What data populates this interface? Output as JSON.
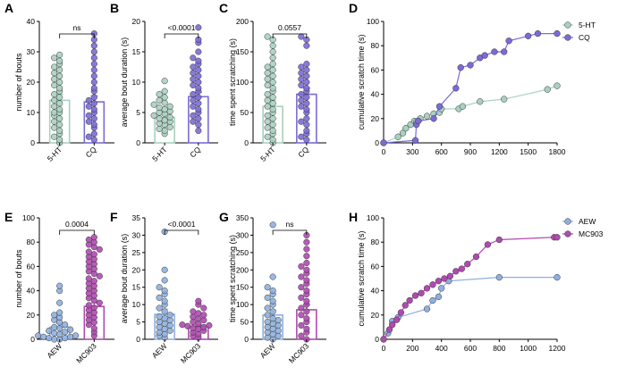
{
  "colors": {
    "5-HT": "#a8d0c0",
    "CQ": "#7b6bd6",
    "AEW": "#8fb0de",
    "MC903": "#b04ab0"
  },
  "chart_data": [
    {
      "panel": "A",
      "type": "bar",
      "categories": [
        "5-HT",
        "CQ"
      ],
      "values": [
        14,
        13.5
      ],
      "sem": [
        2,
        2
      ],
      "points": [
        [
          0,
          1,
          2,
          3,
          4,
          5,
          6,
          7,
          8,
          9,
          10,
          10,
          11,
          12,
          13,
          14,
          15,
          16,
          17,
          18,
          19,
          20,
          21,
          22,
          23,
          24,
          25,
          26,
          27,
          28,
          29
        ],
        [
          1,
          2,
          3,
          5,
          6,
          7,
          8,
          9,
          10,
          11,
          12,
          13,
          14,
          15,
          17,
          18,
          20,
          22,
          24,
          26,
          28,
          30,
          32,
          34,
          36
        ]
      ],
      "ylabel": "number of bouts",
      "ylim": [
        0,
        40
      ],
      "yticks": [
        0,
        10,
        20,
        30,
        40
      ],
      "significance": "ns"
    },
    {
      "panel": "B",
      "type": "bar",
      "categories": [
        "5-HT",
        "CQ"
      ],
      "values": [
        4.2,
        7.6
      ],
      "sem": [
        0.4,
        0.7
      ],
      "points": [
        [
          1.5,
          2,
          2.3,
          2.6,
          3,
          3.2,
          3.5,
          3.7,
          4,
          4.2,
          4.5,
          4.8,
          5,
          5.2,
          5.5,
          5.8,
          6,
          6.3,
          6.6,
          7,
          7.5,
          8,
          8.5,
          10.2
        ],
        [
          2,
          3,
          3.5,
          4,
          4.5,
          5,
          5.5,
          6,
          6.5,
          7,
          7.5,
          8,
          8.5,
          9,
          9.5,
          10,
          10.5,
          11,
          11.5,
          12,
          12.5,
          13,
          13.5,
          14,
          15,
          16.5,
          17,
          19
        ]
      ],
      "ylabel": "average bout duration (s)",
      "ylim": [
        0,
        20
      ],
      "yticks": [
        0,
        5,
        10,
        15,
        20
      ],
      "significance": "<0.0001"
    },
    {
      "panel": "C",
      "type": "bar",
      "categories": [
        "5-HT",
        "CQ"
      ],
      "values": [
        60,
        80
      ],
      "sem": [
        10,
        10
      ],
      "points": [
        [
          0,
          5,
          10,
          15,
          20,
          25,
          30,
          35,
          40,
          45,
          50,
          55,
          60,
          65,
          70,
          75,
          80,
          85,
          90,
          95,
          100,
          105,
          110,
          115,
          120,
          125,
          130,
          140,
          150,
          160,
          170,
          175
        ],
        [
          5,
          10,
          15,
          20,
          30,
          35,
          40,
          50,
          55,
          60,
          65,
          70,
          75,
          80,
          85,
          90,
          95,
          100,
          105,
          110,
          115,
          120,
          125,
          130,
          160,
          170,
          175
        ]
      ],
      "ylabel": "time spent scratching (s)",
      "ylim": [
        0,
        200
      ],
      "yticks": [
        0,
        50,
        100,
        150,
        200
      ],
      "significance": "0.0557"
    },
    {
      "panel": "D",
      "type": "line",
      "series": [
        {
          "name": "5-HT",
          "x": [
            0,
            150,
            200,
            230,
            280,
            320,
            340,
            380,
            450,
            520,
            580,
            600,
            780,
            820,
            1000,
            1250,
            1700,
            1800
          ],
          "y": [
            0,
            5,
            8,
            12,
            15,
            18,
            17,
            20,
            22,
            24,
            25,
            28,
            28,
            30,
            34,
            36,
            44,
            47
          ]
        },
        {
          "name": "CQ",
          "x": [
            0,
            330,
            340,
            360,
            520,
            580,
            750,
            800,
            900,
            1000,
            1050,
            1150,
            1250,
            1300,
            1500,
            1600,
            1800
          ],
          "y": [
            0,
            2,
            15,
            18,
            20,
            30,
            45,
            62,
            64,
            70,
            72,
            75,
            75,
            84,
            88,
            90,
            90
          ]
        }
      ],
      "ylabel": "cumulative scratch time (s)",
      "xlim": [
        0,
        1800
      ],
      "ylim": [
        0,
        100
      ],
      "xticks": [
        0,
        300,
        600,
        900,
        1200,
        1500,
        1800
      ],
      "yticks": [
        0,
        20,
        40,
        60,
        80,
        100
      ],
      "legend": "top-right"
    },
    {
      "panel": "E",
      "type": "bar",
      "categories": [
        "AEW",
        "MC903"
      ],
      "values": [
        10,
        27
      ],
      "sem": [
        3,
        3
      ],
      "points": [
        [
          0,
          0,
          1,
          1,
          2,
          2,
          3,
          3,
          4,
          5,
          6,
          7,
          8,
          9,
          10,
          12,
          14,
          16,
          18,
          20,
          22,
          30,
          40,
          44
        ],
        [
          3,
          6,
          9,
          12,
          14,
          16,
          18,
          20,
          22,
          24,
          26,
          28,
          30,
          32,
          34,
          36,
          38,
          40,
          42,
          44,
          46,
          48,
          50,
          52,
          54,
          56,
          58,
          60,
          62,
          64,
          66,
          68,
          70,
          72,
          74,
          76,
          78,
          80,
          82,
          84
        ]
      ],
      "ylabel": "number of bouts",
      "ylim": [
        0,
        100
      ],
      "yticks": [
        0,
        20,
        40,
        60,
        80,
        100
      ],
      "significance": "0.0004"
    },
    {
      "panel": "F",
      "type": "bar",
      "categories": [
        "AEW",
        "MC903"
      ],
      "values": [
        7.2,
        3.7
      ],
      "sem": [
        1.5,
        0.4
      ],
      "points": [
        [
          0.5,
          1,
          1.5,
          2,
          2.5,
          3,
          3.5,
          4,
          4.5,
          5,
          5.5,
          6,
          6.5,
          7,
          8,
          9,
          10,
          11,
          12,
          13,
          14,
          15,
          17,
          20,
          31
        ],
        [
          0.5,
          1,
          1.5,
          2,
          2.5,
          3,
          3.2,
          3.5,
          3.8,
          4,
          4.2,
          4.5,
          5,
          5.5,
          6,
          6.5,
          7,
          7.5,
          8,
          9,
          10,
          11
        ]
      ],
      "ylabel": "average bout duration (s)",
      "ylim": [
        0,
        35
      ],
      "yticks": [
        0,
        5,
        10,
        15,
        20,
        25,
        30,
        35
      ],
      "significance": "<0.0001"
    },
    {
      "panel": "G",
      "type": "bar",
      "categories": [
        "AEW",
        "MC903"
      ],
      "values": [
        70,
        85
      ],
      "sem": [
        15,
        15
      ],
      "points": [
        [
          0,
          5,
          10,
          15,
          20,
          25,
          30,
          35,
          40,
          45,
          50,
          55,
          60,
          70,
          80,
          90,
          100,
          110,
          120,
          130,
          140,
          150,
          180,
          330
        ],
        [
          0,
          10,
          20,
          30,
          40,
          50,
          60,
          70,
          80,
          90,
          100,
          110,
          120,
          130,
          140,
          150,
          160,
          170,
          180,
          190,
          200,
          210,
          220,
          240,
          260,
          280,
          300
        ]
      ],
      "ylabel": "time spent scratching (s)",
      "ylim": [
        0,
        350
      ],
      "yticks": [
        0,
        50,
        100,
        150,
        200,
        250,
        300,
        350
      ],
      "significance": "ns"
    },
    {
      "panel": "H",
      "type": "line",
      "series": [
        {
          "name": "AEW",
          "x": [
            0,
            30,
            60,
            100,
            300,
            340,
            380,
            400,
            450,
            800,
            1200
          ],
          "y": [
            0,
            5,
            15,
            18,
            25,
            32,
            35,
            42,
            48,
            51,
            51
          ]
        },
        {
          "name": "MC903",
          "x": [
            0,
            40,
            60,
            90,
            120,
            150,
            180,
            220,
            260,
            300,
            340,
            380,
            420,
            460,
            500,
            540,
            580,
            640,
            720,
            800,
            1180,
            1200
          ],
          "y": [
            0,
            8,
            12,
            16,
            22,
            28,
            32,
            36,
            38,
            42,
            45,
            48,
            50,
            52,
            56,
            58,
            62,
            68,
            78,
            82,
            84,
            84
          ]
        }
      ],
      "ylabel": "cumulative scratch time (s)",
      "xlim": [
        0,
        1200
      ],
      "ylim": [
        0,
        100
      ],
      "xticks": [
        0,
        200,
        400,
        600,
        800,
        1000,
        1200
      ],
      "yticks": [
        0,
        20,
        40,
        60,
        80,
        100
      ],
      "legend": "top-right"
    }
  ]
}
